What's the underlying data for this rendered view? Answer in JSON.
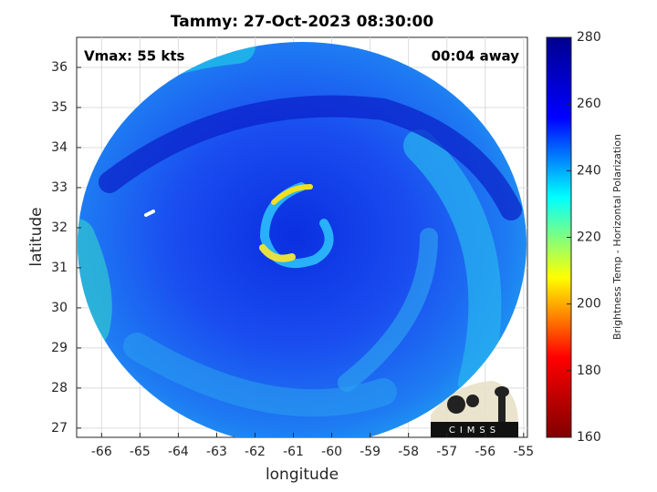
{
  "chart_data": {
    "type": "map",
    "title": "Tammy: 27-Oct-2023 08:30:00",
    "annotations": [
      "Vmax: 55 kts",
      "00:04 away"
    ],
    "xlabel": "longitude",
    "ylabel": "latitude",
    "xlim": [
      -66.65,
      -54.9
    ],
    "ylim": [
      26.77,
      36.75
    ],
    "xticks": [
      -66,
      -65,
      -64,
      -63,
      -62,
      -61,
      -60,
      -59,
      -58,
      -57,
      -56,
      -55
    ],
    "yticks": [
      27,
      28,
      29,
      30,
      31,
      32,
      33,
      34,
      35,
      36
    ],
    "grid": true,
    "colorbar": {
      "label": "Brightness Temp - Horizontal Polarization",
      "lim": [
        160,
        280
      ],
      "ticks": [
        160,
        180,
        200,
        220,
        240,
        260,
        280
      ],
      "colormap": [
        "#800000",
        "#ff0000",
        "#ffff00",
        "#00ffff",
        "#0000ff",
        "#00008f"
      ]
    },
    "logo": "CIMSS"
  }
}
